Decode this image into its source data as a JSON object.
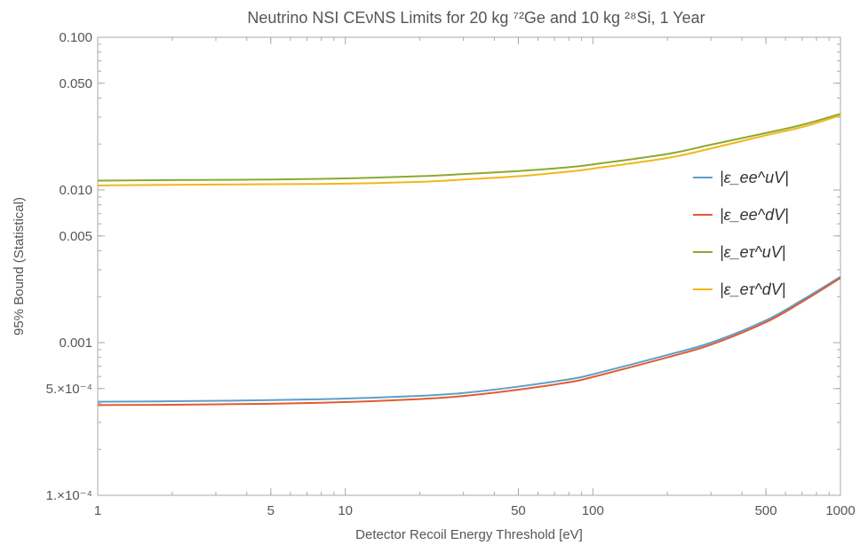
{
  "chart_data": {
    "type": "line",
    "title": "Neutrino NSI CEνNS Limits for 20 kg ⁷²Ge and 10 kg ²⁸Si, 1 Year",
    "xlabel": "Detector Recoil Energy Threshold [eV]",
    "ylabel": "95% Bound (Statistical)",
    "xscale": "log",
    "yscale": "log",
    "xlim": [
      1,
      1000
    ],
    "ylim": [
      0.0001,
      0.1
    ],
    "x_ticks": [
      {
        "value": 1,
        "label": "1"
      },
      {
        "value": 5,
        "label": "5"
      },
      {
        "value": 10,
        "label": "10"
      },
      {
        "value": 50,
        "label": "50"
      },
      {
        "value": 100,
        "label": "100"
      },
      {
        "value": 500,
        "label": "500"
      },
      {
        "value": 1000,
        "label": "1000"
      }
    ],
    "y_ticks": [
      {
        "value": 0.0001,
        "label": "1.×10⁻⁴"
      },
      {
        "value": 0.0005,
        "label": "5.×10⁻⁴"
      },
      {
        "value": 0.001,
        "label": "0.001"
      },
      {
        "value": 0.005,
        "label": "0.005"
      },
      {
        "value": 0.01,
        "label": "0.010"
      },
      {
        "value": 0.05,
        "label": "0.050"
      },
      {
        "value": 0.1,
        "label": "0.100"
      }
    ],
    "grid": false,
    "frame": true,
    "legend_position": "right",
    "series": [
      {
        "name": "|ε_ee^uV|",
        "color": "#5e9ec9",
        "x": [
          1,
          2,
          5,
          10,
          20,
          30,
          50,
          80,
          100,
          200,
          300,
          500,
          700,
          1000
        ],
        "y": [
          0.00041,
          0.000413,
          0.00042,
          0.00043,
          0.000448,
          0.000468,
          0.000515,
          0.000575,
          0.00062,
          0.00083,
          0.001,
          0.0014,
          0.0019,
          0.0027
        ]
      },
      {
        "name": "|ε_ee^dV|",
        "color": "#e15b33",
        "x": [
          1,
          2,
          5,
          10,
          20,
          30,
          50,
          80,
          100,
          200,
          300,
          500,
          700,
          1000
        ],
        "y": [
          0.00039,
          0.000392,
          0.000398,
          0.000408,
          0.000427,
          0.000447,
          0.000492,
          0.00055,
          0.000595,
          0.0008,
          0.00097,
          0.00136,
          0.00185,
          0.00265
        ]
      },
      {
        "name": "|ε_eτ^uV|",
        "color": "#8aaa2f",
        "x": [
          1,
          2,
          5,
          10,
          20,
          30,
          50,
          80,
          100,
          200,
          300,
          500,
          700,
          1000
        ],
        "y": [
          0.0115,
          0.0116,
          0.0117,
          0.0119,
          0.0123,
          0.0127,
          0.0133,
          0.0141,
          0.0147,
          0.0172,
          0.0198,
          0.0236,
          0.0267,
          0.0315
        ]
      },
      {
        "name": "|ε_eτ^dV|",
        "color": "#f2b616",
        "x": [
          1,
          2,
          5,
          10,
          20,
          30,
          50,
          80,
          100,
          200,
          300,
          500,
          700,
          1000
        ],
        "y": [
          0.0107,
          0.0108,
          0.0109,
          0.011,
          0.0113,
          0.0117,
          0.0123,
          0.0132,
          0.0138,
          0.0162,
          0.0187,
          0.0228,
          0.0258,
          0.0308
        ]
      }
    ]
  }
}
